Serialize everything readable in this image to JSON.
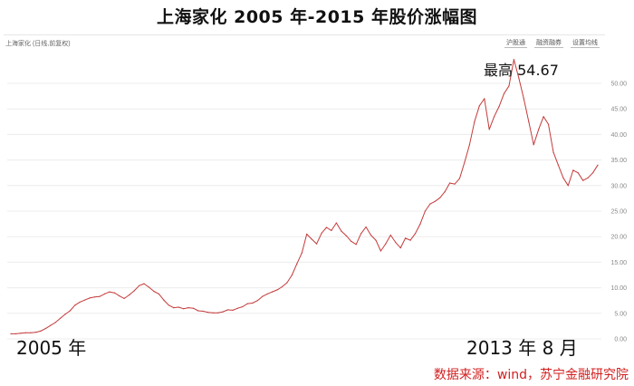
{
  "title": "上海家化 2005 年-2015 年股价涨幅图",
  "panel": {
    "label": "上海家化 (日线,前复权)",
    "toolbar": [
      "沪股通",
      "融资融券",
      "设置均线"
    ]
  },
  "annotations": {
    "peak": "最高 54.67",
    "start": "2005 年",
    "end": "2013 年 8 月"
  },
  "source": "数据来源：wind，苏宁金融研究院",
  "colors": {
    "line": "#c43a3a",
    "grid": "#ececec",
    "source": "#d21f1f"
  },
  "chart_data": {
    "type": "line",
    "ylim": [
      0,
      55
    ],
    "yticks": [
      0,
      5,
      10,
      15,
      20,
      25,
      30,
      35,
      40,
      45,
      50
    ],
    "ytick_labels": [
      "0.00",
      "5.00",
      "10.00",
      "15.00",
      "20.00",
      "25.00",
      "30.00",
      "35.00",
      "40.00",
      "45.00",
      "50.00"
    ],
    "grid": true,
    "series": [
      {
        "x": [
          0,
          1,
          2,
          3,
          4,
          5,
          6,
          7,
          8,
          9,
          10,
          11,
          12,
          13,
          14,
          15,
          16,
          17,
          18,
          19,
          20,
          21,
          22,
          23,
          24,
          25,
          26,
          27,
          28,
          29,
          30,
          31,
          32,
          33,
          34,
          35,
          36,
          37,
          38,
          39,
          40,
          41,
          42,
          43,
          44,
          45,
          46,
          47,
          48,
          49,
          50,
          51,
          52,
          53,
          54,
          55,
          56,
          57,
          58,
          59,
          60,
          61,
          62,
          63,
          64,
          65,
          66,
          67,
          68,
          69,
          70,
          71,
          72,
          73,
          74,
          75,
          76,
          77,
          78,
          79,
          80,
          81,
          82,
          83,
          84,
          85,
          86,
          87,
          88,
          89,
          90,
          91,
          92,
          93,
          94,
          95,
          96,
          97,
          98,
          99,
          100,
          101,
          102,
          103,
          104,
          105,
          106,
          107,
          108,
          109,
          110,
          111,
          112,
          113,
          114,
          115,
          116,
          117,
          118,
          119
        ],
        "values": [
          1.0,
          1.0,
          1.1,
          1.2,
          1.2,
          1.3,
          1.5,
          2.0,
          2.6,
          3.2,
          4.0,
          4.8,
          5.5,
          6.6,
          7.2,
          7.6,
          8.0,
          8.2,
          8.3,
          8.8,
          9.2,
          9.0,
          8.4,
          7.9,
          8.6,
          9.4,
          10.4,
          10.8,
          10.1,
          9.3,
          8.8,
          7.6,
          6.6,
          6.1,
          6.2,
          5.9,
          6.1,
          6.0,
          5.5,
          5.4,
          5.2,
          5.1,
          5.1,
          5.3,
          5.7,
          5.6,
          6.0,
          6.3,
          6.9,
          7.0,
          7.5,
          8.3,
          8.8,
          9.2,
          9.6,
          10.2,
          11.0,
          12.5,
          14.7,
          16.8,
          20.5,
          19.5,
          18.6,
          20.7,
          21.8,
          21.2,
          22.7,
          21.1,
          20.2,
          19.1,
          18.5,
          20.6,
          21.9,
          20.3,
          19.3,
          17.2,
          18.6,
          20.3,
          18.9,
          17.8,
          19.7,
          19.3,
          20.6,
          22.5,
          25.0,
          26.4,
          26.9,
          27.6,
          28.8,
          30.5,
          30.3,
          31.4,
          34.6,
          38.0,
          42.5,
          45.6,
          47.0,
          41.0,
          43.5,
          45.5,
          48.0,
          49.5,
          54.67,
          51.0,
          47.0,
          42.5,
          38.0,
          41.0,
          43.5,
          42.0,
          36.5,
          34.0,
          31.5,
          30.0,
          33.0,
          32.5,
          31.0,
          31.5,
          32.5,
          34.0
        ]
      }
    ]
  }
}
